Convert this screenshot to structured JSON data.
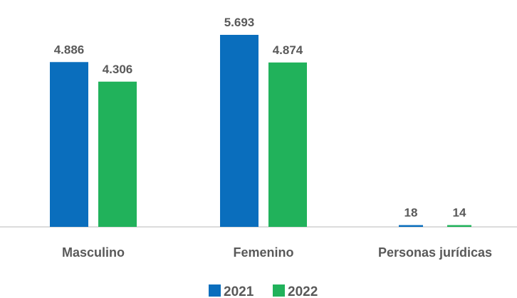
{
  "chart_data": {
    "type": "bar",
    "categories": [
      "Masculino",
      "Femenino",
      "Personas jurídicas"
    ],
    "series": [
      {
        "name": "2021",
        "color": "#0a6ebd",
        "values": [
          4886,
          5693,
          18
        ],
        "value_labels": [
          "4.886",
          "5.693",
          "18"
        ]
      },
      {
        "name": "2022",
        "color": "#21b25b",
        "values": [
          4306,
          4874,
          14
        ],
        "value_labels": [
          "4.306",
          "4.874",
          "14"
        ]
      }
    ]
  }
}
